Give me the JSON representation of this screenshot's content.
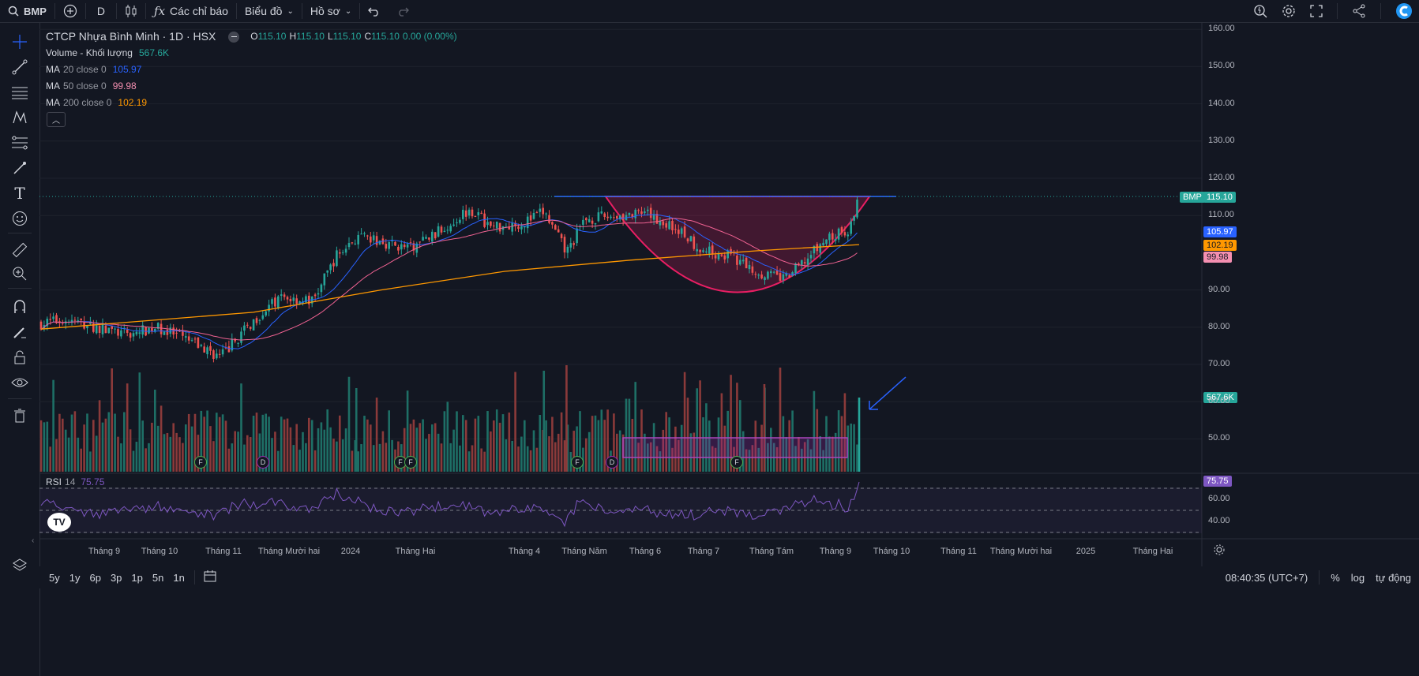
{
  "topbar": {
    "symbol": "BMP",
    "interval": "D",
    "indicators_label": "Các chỉ báo",
    "chart_label": "Biểu đồ",
    "profile_label": "Hồ sơ"
  },
  "legend": {
    "title": "CTCP Nhựa Bình Minh · 1D · HSX",
    "o_label": "O",
    "o": "115.10",
    "h_label": "H",
    "h": "115.10",
    "l_label": "L",
    "l": "115.10",
    "c_label": "C",
    "c": "115.10",
    "change": "0.00 (0.00%)",
    "volume_label": "Volume - Khối lượng",
    "volume_value": "567.6K",
    "ma20_label": "MA",
    "ma20_params": "20 close 0",
    "ma20_value": "105.97",
    "ma50_label": "MA",
    "ma50_params": "50 close 0",
    "ma50_value": "99.98",
    "ma200_label": "MA",
    "ma200_params": "200 close 0",
    "ma200_value": "102.19",
    "rsi_label": "RSI",
    "rsi_params": "14",
    "rsi_value": "75.75"
  },
  "price_axis": {
    "ticks": [
      "160.00",
      "150.00",
      "140.00",
      "130.00",
      "120.00",
      "110.00",
      "90.00",
      "80.00",
      "70.00",
      "60.00",
      "50.00"
    ],
    "tags": {
      "symbol": "BMP",
      "last": "115.10",
      "ma20": "105.97",
      "ma200": "102.19",
      "ma50": "99.98",
      "volume": "567.6K",
      "rsi": "75.75"
    },
    "rsi_ticks": [
      "60.00",
      "40.00"
    ]
  },
  "time_axis": {
    "labels": [
      "Tháng 9",
      "Tháng 10",
      "Tháng 11",
      "Tháng Mười hai",
      "2024",
      "Tháng Hai",
      "Tháng 4",
      "Tháng Năm",
      "Tháng 6",
      "Tháng 7",
      "Tháng Tám",
      "Tháng 9",
      "Tháng 10",
      "Tháng 11",
      "Tháng Mười hai",
      "2025",
      "Tháng Hai"
    ]
  },
  "events": {
    "markers": [
      "F",
      "D",
      "F",
      "F",
      "F",
      "D",
      "F"
    ]
  },
  "bottombar": {
    "ranges": [
      "5y",
      "1y",
      "6p",
      "3p",
      "1p",
      "5n",
      "1n"
    ],
    "time": "08:40:35 (UTC+7)",
    "percent": "%",
    "log": "log",
    "auto": "tự động"
  },
  "colors": {
    "bg": "#131722",
    "up": "#26a69a",
    "down": "#ef5350",
    "ma20": "#2962ff",
    "ma50": "#e91e63",
    "ma200": "#ff9800",
    "rsi": "#7e57c2",
    "pattern": "#e91e63",
    "resistance": "#2962ff"
  },
  "chart_data": {
    "type": "candlestick",
    "title": "CTCP Nhựa Bình Minh · 1D · HSX",
    "ylim": [
      65,
      162
    ],
    "x_range": [
      "2023-08",
      "2025-02"
    ],
    "series": [
      {
        "name": "MA 20 close 0",
        "last": 105.97
      },
      {
        "name": "MA 50 close 0",
        "last": 99.98
      },
      {
        "name": "MA 200 close 0",
        "last": 102.19
      },
      {
        "name": "Volume - Khối lượng",
        "last": "567.6K"
      },
      {
        "name": "RSI 14",
        "last": 75.75
      }
    ],
    "close_path": [
      [
        "2023-08-20",
        81
      ],
      [
        "2023-09-01",
        82
      ],
      [
        "2023-09-15",
        80
      ],
      [
        "2023-10-01",
        78
      ],
      [
        "2023-10-15",
        80
      ],
      [
        "2023-11-01",
        76
      ],
      [
        "2023-11-15",
        72
      ],
      [
        "2023-11-25",
        78
      ],
      [
        "2023-12-05",
        84
      ],
      [
        "2023-12-15",
        88
      ],
      [
        "2023-12-30",
        87
      ],
      [
        "2024-01-10",
        99
      ],
      [
        "2024-01-20",
        104
      ],
      [
        "2024-02-01",
        103
      ],
      [
        "2024-02-15",
        101
      ],
      [
        "2024-03-01",
        106
      ],
      [
        "2024-03-15",
        112
      ],
      [
        "2024-03-25",
        107
      ],
      [
        "2024-04-10",
        108
      ],
      [
        "2024-04-20",
        111
      ],
      [
        "2024-05-01",
        100
      ],
      [
        "2024-05-10",
        109
      ],
      [
        "2024-05-25",
        110
      ],
      [
        "2024-06-10",
        110
      ],
      [
        "2024-06-25",
        106
      ],
      [
        "2024-07-05",
        101
      ],
      [
        "2024-07-20",
        99
      ],
      [
        "2024-08-01",
        95
      ],
      [
        "2024-08-15",
        93
      ],
      [
        "2024-08-25",
        98
      ],
      [
        "2024-09-05",
        104
      ],
      [
        "2024-09-15",
        106
      ],
      [
        "2024-09-20",
        115.1
      ]
    ],
    "resistance": 115.1,
    "annotations": [
      "cup pattern",
      "volume box",
      "arrow to last volume bar"
    ]
  }
}
